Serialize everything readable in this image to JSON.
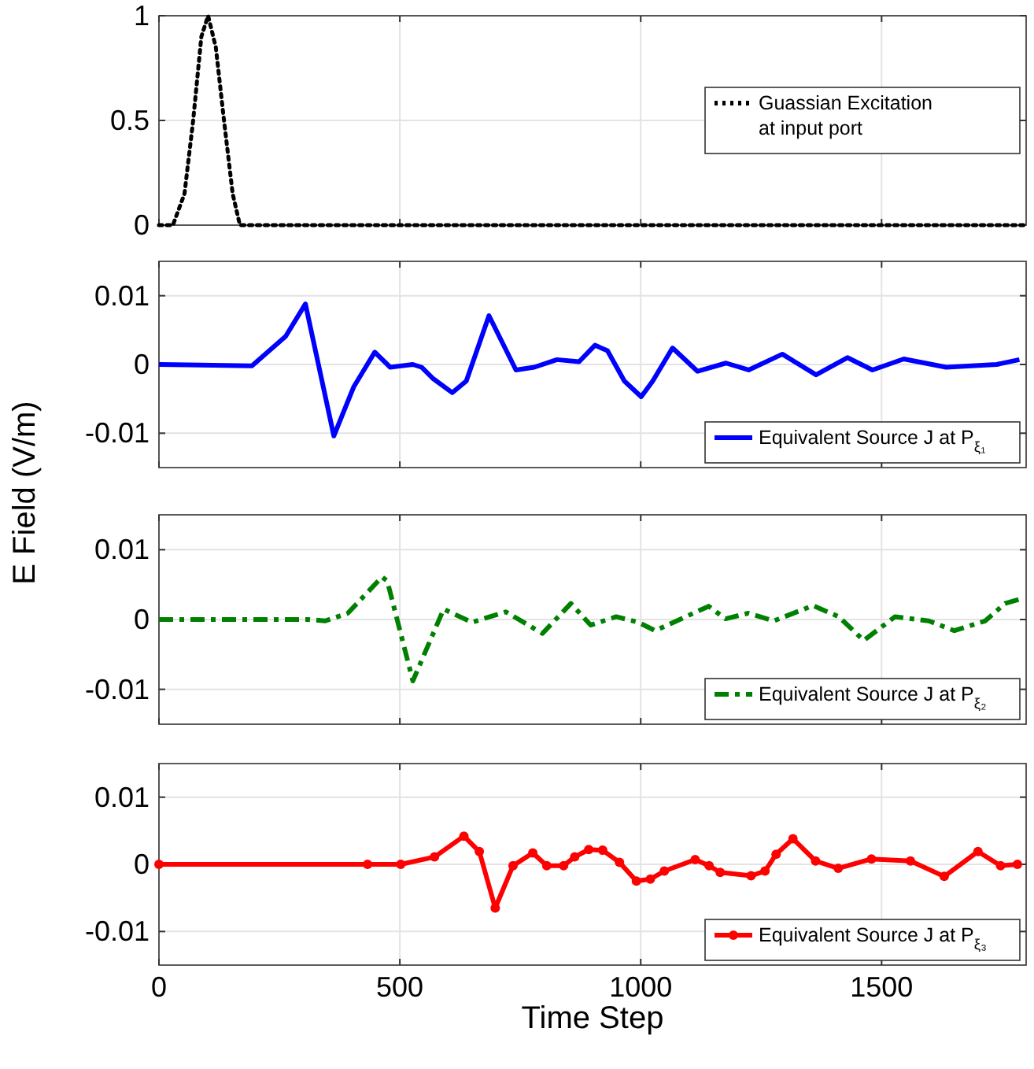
{
  "chart_data": [
    {
      "type": "line",
      "xlim": [
        0,
        1800
      ],
      "xticks": [
        0,
        500,
        1000,
        1500
      ],
      "ylim": [
        0,
        1
      ],
      "yticks": [
        0,
        0.5,
        1
      ],
      "grid": true,
      "tick_labels": "y",
      "legend": "right",
      "line_style": "dotted",
      "series": [
        {
          "name": "Guassian Excitation\nat input port",
          "color": "#000000",
          "x": [
            0,
            29,
            53,
            71,
            88,
            102,
            118,
            135,
            153,
            168,
            200,
            1800
          ],
          "values": [
            0,
            0,
            0.15,
            0.5,
            0.9,
            1,
            0.85,
            0.5,
            0.15,
            0,
            0,
            0
          ]
        }
      ]
    },
    {
      "type": "line",
      "xlim": [
        0,
        1800
      ],
      "xticks": [
        0,
        500,
        1000,
        1500
      ],
      "ylim": [
        -0.015,
        0.015
      ],
      "yticks": [
        -0.01,
        0,
        0.01
      ],
      "grid": true,
      "tick_labels": "y",
      "legend": "bottom right",
      "line_style": "solid",
      "ylabel": "E Field (V/m)",
      "series": [
        {
          "name": "Equivalent Source J at P$_{ξ₁}$",
          "color": "#0000ff",
          "x": [
            0,
            193,
            263,
            304,
            363,
            404,
            448,
            480,
            527,
            545,
            568,
            609,
            638,
            685,
            741,
            779,
            826,
            872,
            905,
            931,
            966,
            1001,
            1025,
            1066,
            1118,
            1177,
            1224,
            1294,
            1364,
            1429,
            1481,
            1546,
            1634,
            1739,
            1786
          ],
          "values": [
            0,
            -0.0002,
            0.0041,
            0.0088,
            -0.0104,
            -0.0033,
            0.0018,
            -0.0004,
            0,
            -0.0004,
            -0.002,
            -0.0041,
            -0.0024,
            0.0071,
            -0.0008,
            -0.0004,
            0.0007,
            0.0004,
            0.0028,
            0.002,
            -0.0024,
            -0.0047,
            -0.0024,
            0.0024,
            -0.001,
            0.0002,
            -0.0008,
            0.0015,
            -0.0015,
            0.001,
            -0.0008,
            0.0008,
            -0.0004,
            0,
            0.0007
          ]
        }
      ]
    },
    {
      "type": "line",
      "xlim": [
        0,
        1800
      ],
      "xticks": [
        0,
        500,
        1000,
        1500
      ],
      "ylim": [
        -0.015,
        0.015
      ],
      "yticks": [
        -0.01,
        0,
        0.01
      ],
      "grid": true,
      "tick_labels": "y",
      "legend": "bottom right",
      "line_style": "dashdot",
      "series": [
        {
          "name": "Equivalent Source J at P$_{ξ₂}$",
          "color": "#008000",
          "x": [
            0,
            310,
            345,
            392,
            463,
            474,
            527,
            591,
            609,
            650,
            720,
            796,
            855,
            896,
            949,
            995,
            1030,
            1141,
            1176,
            1223,
            1276,
            1358,
            1411,
            1463,
            1528,
            1598,
            1651,
            1715,
            1756,
            1786
          ],
          "values": [
            0,
            0,
            -0.0002,
            0.0009,
            0.0061,
            0.0055,
            -0.0088,
            0.0015,
            0.0009,
            -0.0004,
            0.0011,
            -0.002,
            0.0023,
            -0.0008,
            0.0004,
            -0.0004,
            -0.0016,
            0.0019,
            0.0001,
            0.0009,
            -0.0002,
            0.002,
            0.0004,
            -0.003,
            0.0004,
            -0.0002,
            -0.0016,
            -0.0002,
            0.0023,
            0.0029
          ]
        }
      ]
    },
    {
      "type": "line",
      "xlim": [
        0,
        1800
      ],
      "xticks": [
        0,
        500,
        1000,
        1500
      ],
      "ylim": [
        -0.015,
        0.015
      ],
      "yticks": [
        -0.01,
        0,
        0.01
      ],
      "grid": true,
      "legend": "bottom right",
      "line_style": "solid",
      "marker": "circle",
      "xlabel": "Time Step",
      "series": [
        {
          "name": "Equivalent Source J at P$_{ξ₃}$",
          "color": "#ff0000",
          "x": [
            0,
            433,
            502,
            572,
            633,
            665,
            698,
            735,
            776,
            805,
            840,
            863,
            892,
            921,
            956,
            991,
            1020,
            1049,
            1113,
            1142,
            1165,
            1229,
            1258,
            1281,
            1316,
            1363,
            1410,
            1479,
            1560,
            1630,
            1700,
            1747,
            1782
          ],
          "values": [
            0,
            0,
            0,
            0.0011,
            0.0042,
            0.0019,
            -0.0065,
            -0.0002,
            0.0017,
            -0.0002,
            -0.0002,
            0.0011,
            0.0022,
            0.0021,
            0.0003,
            -0.0025,
            -0.0022,
            -0.001,
            0.0007,
            -0.0002,
            -0.0012,
            -0.0017,
            -0.001,
            0.0015,
            0.0038,
            0.0005,
            -0.0006,
            0.0008,
            0.0005,
            -0.0018,
            0.0019,
            -0.0002,
            0
          ]
        }
      ]
    }
  ]
}
